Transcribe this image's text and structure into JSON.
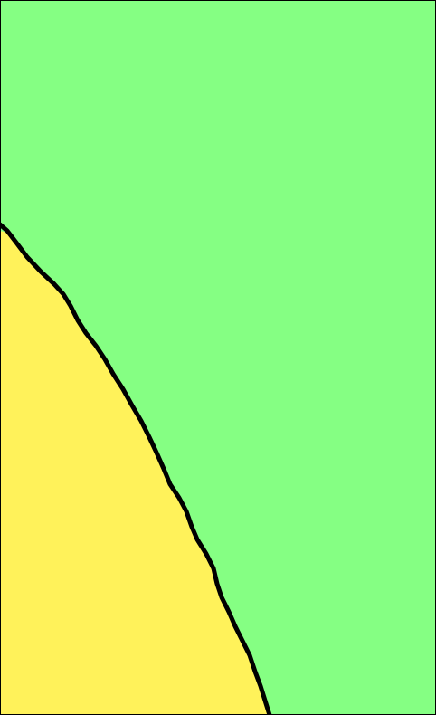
{
  "map": {
    "regions": [
      {
        "name": "green-region",
        "color": "#85ff83"
      },
      {
        "name": "yellow-region",
        "color": "#fff25a"
      }
    ],
    "border_color": "#000000",
    "frame_color": "#000000"
  }
}
